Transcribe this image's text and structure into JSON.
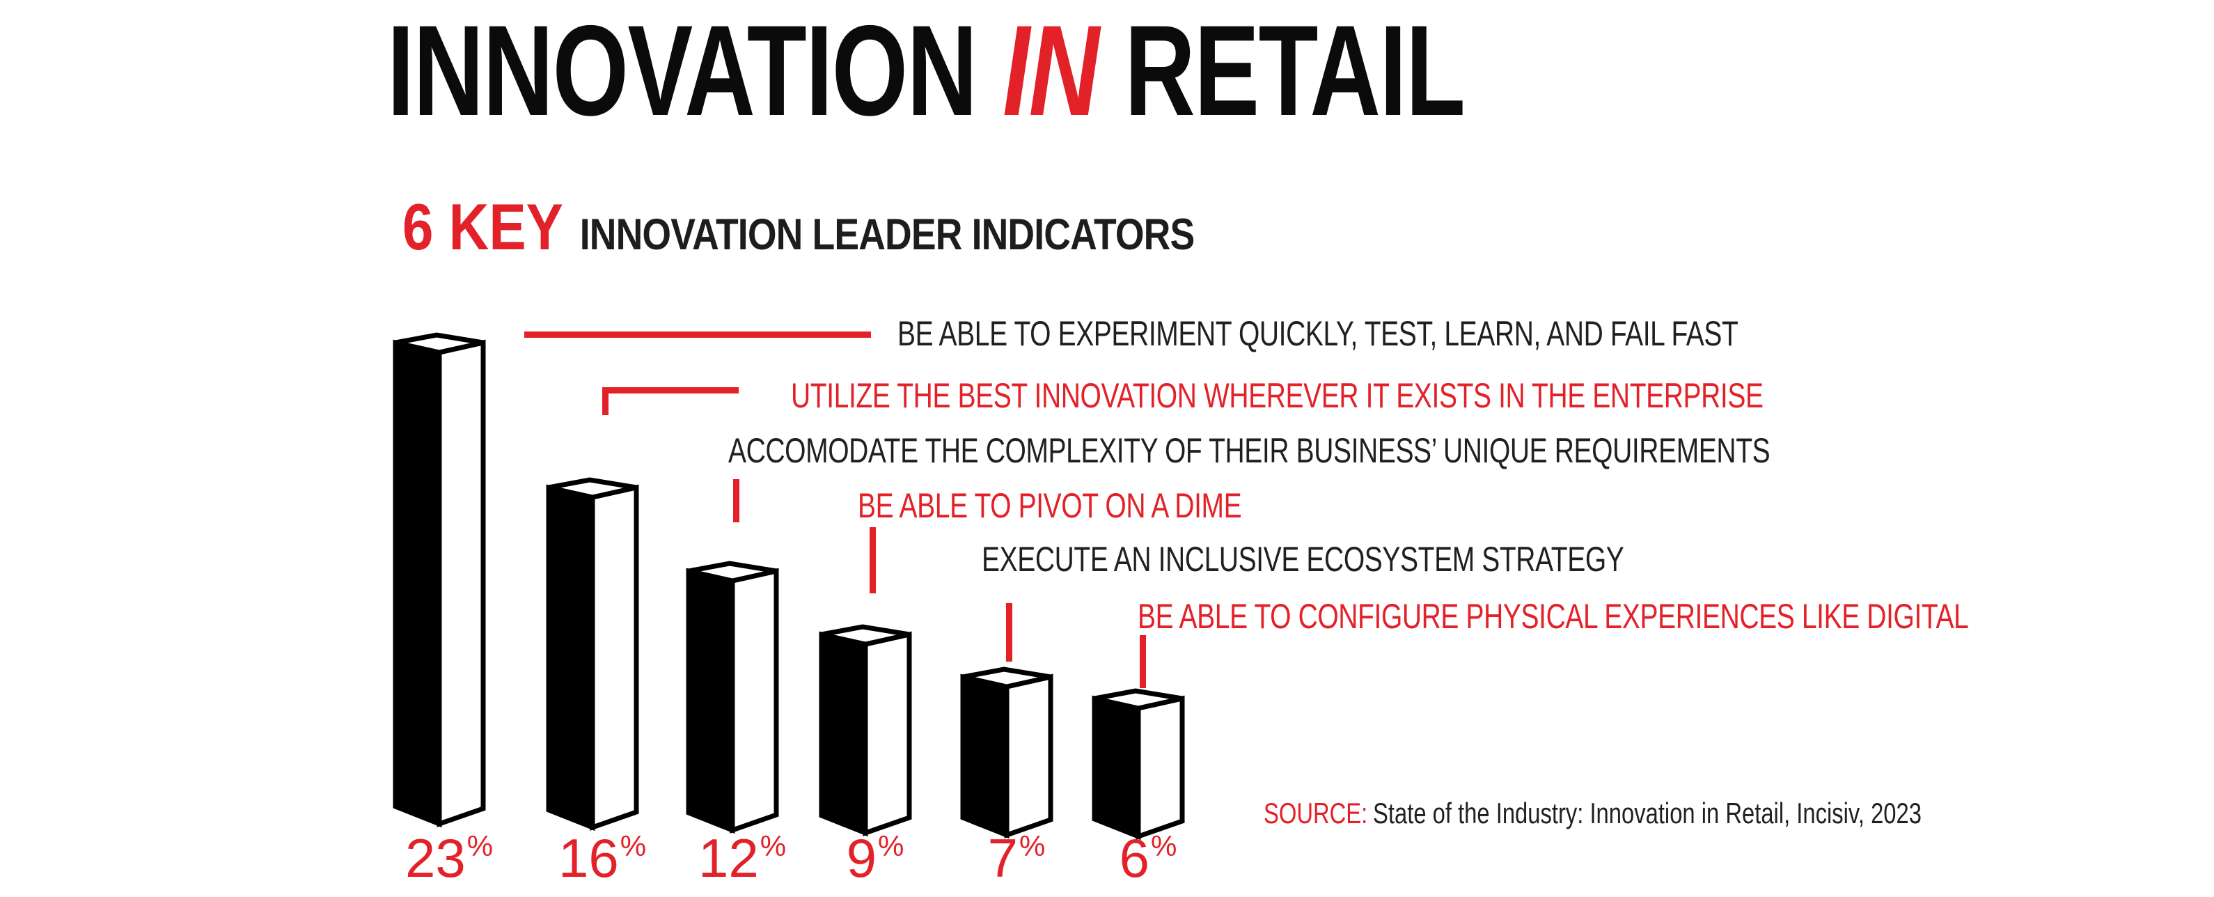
{
  "title": {
    "part1": "INNOVATION",
    "highlight": "IN",
    "part2": "RETAIL"
  },
  "subtitle": {
    "highlight": "6 KEY",
    "rest": "INNOVATION LEADER INDICATORS"
  },
  "indicators": [
    {
      "label": "BE ABLE TO EXPERIMENT QUICKLY, TEST, LEARN, AND FAIL FAST",
      "color": "black"
    },
    {
      "label": "UTILIZE THE BEST INNOVATION WHEREVER IT EXISTS IN THE ENTERPRISE",
      "color": "red"
    },
    {
      "label": "ACCOMODATE THE COMPLEXITY OF THEIR BUSINESS’ UNIQUE REQUIREMENTS",
      "color": "black"
    },
    {
      "label": "BE ABLE TO PIVOT ON A DIME",
      "color": "red"
    },
    {
      "label": "EXECUTE AN INCLUSIVE ECOSYSTEM STRATEGY",
      "color": "black"
    },
    {
      "label": "BE ABLE TO CONFIGURE PHYSICAL EXPERIENCES LIKE DIGITAL",
      "color": "red"
    }
  ],
  "chart_data": {
    "type": "bar",
    "title": "6 KEY INNOVATION LEADER INDICATORS",
    "categories": [
      "BE ABLE TO EXPERIMENT QUICKLY, TEST, LEARN, AND FAIL FAST",
      "UTILIZE THE BEST INNOVATION WHEREVER IT EXISTS IN THE ENTERPRISE",
      "ACCOMODATE THE COMPLEXITY OF THEIR BUSINESS’ UNIQUE REQUIREMENTS",
      "BE ABLE TO PIVOT ON A DIME",
      "EXECUTE AN INCLUSIVE ECOSYSTEM STRATEGY",
      "BE ABLE TO CONFIGURE PHYSICAL EXPERIENCES LIKE DIGITAL"
    ],
    "values": [
      23,
      16,
      12,
      9,
      7,
      6
    ],
    "unit": "%",
    "value_labels": [
      "23%",
      "16%",
      "12%",
      "9%",
      "7%",
      "6%"
    ],
    "xlabel": "",
    "ylabel": "",
    "grid": false,
    "legend": "none",
    "style": "3d black columns with white front faces, red percentage labels below"
  },
  "source": {
    "prefix": "SOURCE:",
    "text": "State of the Industry: Innovation in Retail, Incisiv, 2023"
  },
  "colors": {
    "accent_red": "#e22128",
    "bar_black": "#000000",
    "bar_white": "#ffffff",
    "text_black": "#231f20"
  }
}
